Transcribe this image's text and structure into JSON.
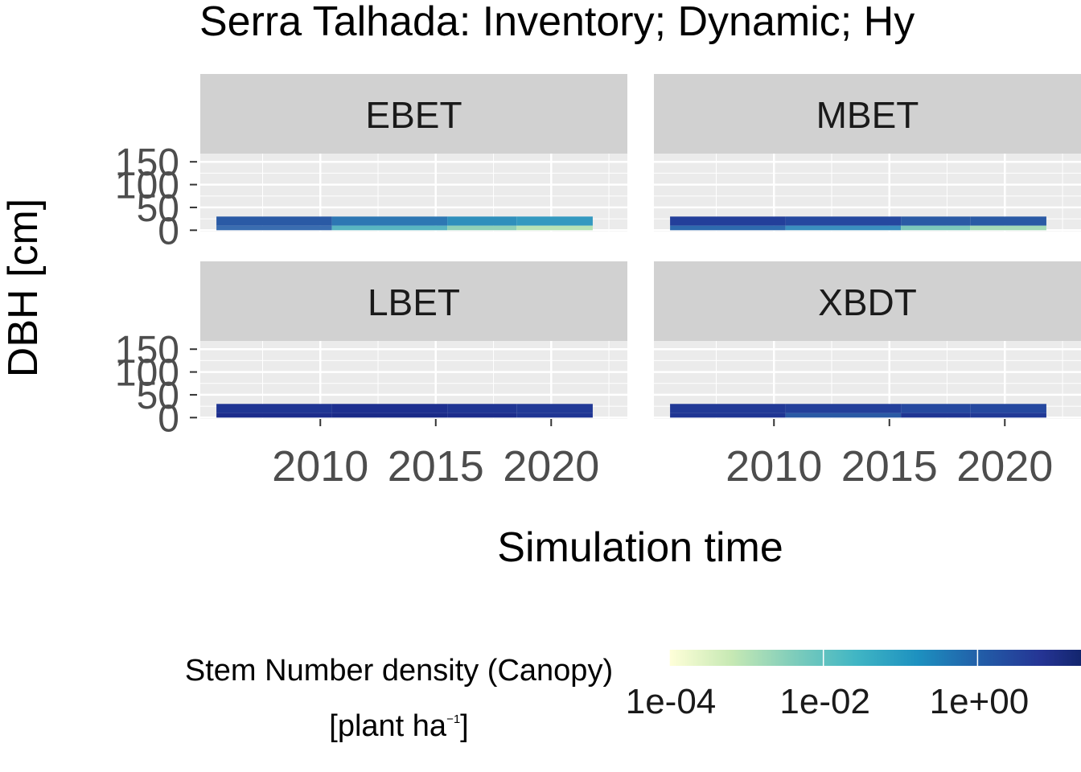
{
  "chart_data": {
    "type": "heatmap",
    "title": "Serra Talhada: Inventory; Dynamic; Hy",
    "xlabel": "Simulation time",
    "ylabel": "DBH [cm]",
    "xlim": [
      2004.8,
      2023.3
    ],
    "ylim": [
      -3,
      168
    ],
    "x_ticks": [
      "2010",
      "2015",
      "2020"
    ],
    "x_tick_values": [
      2010,
      2015,
      2020
    ],
    "y_ticks": [
      "0",
      "50",
      "100",
      "150"
    ],
    "y_tick_values": [
      0,
      50,
      100,
      150
    ],
    "grid": true,
    "panels": [
      {
        "name": "EBET",
        "cells": [
          {
            "x0": 2005.5,
            "x1": 2010.5,
            "y0": 10,
            "y1": 30,
            "color": "#2a5aa5"
          },
          {
            "x0": 2010.5,
            "x1": 2015.5,
            "y0": 10,
            "y1": 30,
            "color": "#2d77b3"
          },
          {
            "x0": 2015.5,
            "x1": 2018.5,
            "y0": 10,
            "y1": 30,
            "color": "#2f8fbc"
          },
          {
            "x0": 2018.5,
            "x1": 2021.8,
            "y0": 10,
            "y1": 30,
            "color": "#3499c0"
          },
          {
            "x0": 2005.5,
            "x1": 2010.5,
            "y0": 0,
            "y1": 10,
            "color": "#3a6db0"
          },
          {
            "x0": 2010.5,
            "x1": 2015.5,
            "y0": 0,
            "y1": 10,
            "color": "#58b5c1"
          },
          {
            "x0": 2015.5,
            "x1": 2018.5,
            "y0": 0,
            "y1": 10,
            "color": "#8fd0b7"
          },
          {
            "x0": 2018.5,
            "x1": 2021.8,
            "y0": 0,
            "y1": 10,
            "color": "#b7e3b6"
          }
        ]
      },
      {
        "name": "MBET",
        "cells": [
          {
            "x0": 2005.5,
            "x1": 2010.5,
            "y0": 10,
            "y1": 30,
            "color": "#233f9a"
          },
          {
            "x0": 2010.5,
            "x1": 2015.5,
            "y0": 10,
            "y1": 30,
            "color": "#25489f"
          },
          {
            "x0": 2015.5,
            "x1": 2018.5,
            "y0": 10,
            "y1": 30,
            "color": "#2a5aa5"
          },
          {
            "x0": 2018.5,
            "x1": 2021.8,
            "y0": 10,
            "y1": 30,
            "color": "#2a5aa5"
          },
          {
            "x0": 2005.5,
            "x1": 2010.5,
            "y0": 0,
            "y1": 10,
            "color": "#2e6aae"
          },
          {
            "x0": 2010.5,
            "x1": 2015.5,
            "y0": 0,
            "y1": 10,
            "color": "#3a8fbf"
          },
          {
            "x0": 2015.5,
            "x1": 2018.5,
            "y0": 0,
            "y1": 10,
            "color": "#7cc8bb"
          },
          {
            "x0": 2018.5,
            "x1": 2021.8,
            "y0": 0,
            "y1": 10,
            "color": "#a5dbb8"
          }
        ]
      },
      {
        "name": "LBET",
        "cells": [
          {
            "x0": 2005.5,
            "x1": 2010.5,
            "y0": 10,
            "y1": 30,
            "color": "#1f3593"
          },
          {
            "x0": 2010.5,
            "x1": 2015.5,
            "y0": 10,
            "y1": 30,
            "color": "#1d2f8f"
          },
          {
            "x0": 2015.5,
            "x1": 2018.5,
            "y0": 10,
            "y1": 30,
            "color": "#1f3593"
          },
          {
            "x0": 2018.5,
            "x1": 2021.8,
            "y0": 10,
            "y1": 30,
            "color": "#213996"
          },
          {
            "x0": 2005.5,
            "x1": 2010.5,
            "y0": 0,
            "y1": 10,
            "color": "#1c2c8c"
          },
          {
            "x0": 2010.5,
            "x1": 2015.5,
            "y0": 0,
            "y1": 10,
            "color": "#1a2a88"
          },
          {
            "x0": 2015.5,
            "x1": 2018.5,
            "y0": 0,
            "y1": 10,
            "color": "#1c2c8c"
          },
          {
            "x0": 2018.5,
            "x1": 2021.8,
            "y0": 0,
            "y1": 10,
            "color": "#1f3593"
          }
        ]
      },
      {
        "name": "XBDT",
        "cells": [
          {
            "x0": 2005.5,
            "x1": 2010.5,
            "y0": 10,
            "y1": 30,
            "color": "#213996"
          },
          {
            "x0": 2010.5,
            "x1": 2015.5,
            "y0": 10,
            "y1": 30,
            "color": "#233f9a"
          },
          {
            "x0": 2015.5,
            "x1": 2018.5,
            "y0": 10,
            "y1": 30,
            "color": "#25489f"
          },
          {
            "x0": 2018.5,
            "x1": 2021.8,
            "y0": 10,
            "y1": 30,
            "color": "#25489f"
          },
          {
            "x0": 2005.5,
            "x1": 2010.5,
            "y0": 0,
            "y1": 10,
            "color": "#1f3593"
          },
          {
            "x0": 2010.5,
            "x1": 2015.5,
            "y0": 0,
            "y1": 10,
            "color": "#2a5aa5"
          },
          {
            "x0": 2015.5,
            "x1": 2018.5,
            "y0": 0,
            "y1": 10,
            "color": "#1f3593"
          },
          {
            "x0": 2018.5,
            "x1": 2021.8,
            "y0": 0,
            "y1": 10,
            "color": "#213996"
          }
        ]
      }
    ],
    "legend": {
      "title_line1": "Stem Number density (Canopy)",
      "title_line2_prefix": "[plant  ha",
      "title_line2_sup": "−1",
      "title_line2_suffix": "]",
      "placement": "bottom",
      "scale": "log",
      "tick_labels": [
        "1e-04",
        "1e-02",
        "1e+00",
        "1"
      ],
      "colors": [
        "#ffffd9",
        "#c7e9b4",
        "#7fcdbb",
        "#41b6c4",
        "#1d91c0",
        "#225ea8",
        "#253494",
        "#081d58"
      ]
    }
  }
}
